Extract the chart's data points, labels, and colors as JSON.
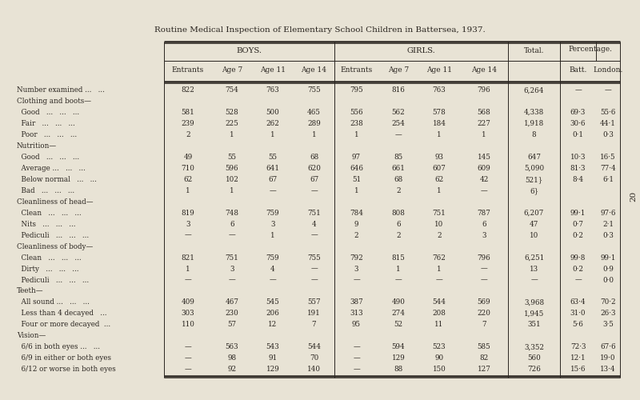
{
  "title": "Routine Medical Inspection of Elementary School Children in Battersea, 1937.",
  "bg_color": "#e8e3d5",
  "table_bg": "#f5f2eb",
  "text_color": "#2a2520",
  "rows": [
    {
      "label": "Number examined ...   ...",
      "section": false,
      "values": [
        "822",
        "754",
        "763",
        "755",
        "795",
        "816",
        "763",
        "796",
        "6,264",
        "—",
        "—"
      ]
    },
    {
      "label": "Clothing and boots—",
      "section": true,
      "values": [
        "",
        "",
        "",
        "",
        "",
        "",
        "",
        "",
        "",
        "",
        ""
      ]
    },
    {
      "label": "  Good   ...   ...   ...",
      "section": false,
      "values": [
        "581",
        "528",
        "500",
        "465",
        "556",
        "562",
        "578",
        "568",
        "4,338",
        "69·3",
        "55·6"
      ]
    },
    {
      "label": "  Fair   ...   ...   ...",
      "section": false,
      "values": [
        "239",
        "225",
        "262",
        "289",
        "238",
        "254",
        "184",
        "227",
        "1,918",
        "30·6",
        "44·1"
      ]
    },
    {
      "label": "  Poor   ...   ...   ...",
      "section": false,
      "values": [
        "2",
        "1",
        "1",
        "1",
        "1",
        "—",
        "1",
        "1",
        "8",
        "0·1",
        "0·3"
      ]
    },
    {
      "label": "Nutrition—",
      "section": true,
      "values": [
        "",
        "",
        "",
        "",
        "",
        "",
        "",
        "",
        "",
        "",
        ""
      ]
    },
    {
      "label": "  Good   ...   ...   ...",
      "section": false,
      "values": [
        "49",
        "55",
        "55",
        "68",
        "97",
        "85",
        "93",
        "145",
        "647",
        "10·3",
        "16·5"
      ]
    },
    {
      "label": "  Average ...   ...   ...",
      "section": false,
      "values": [
        "710",
        "596",
        "641",
        "620",
        "646",
        "661",
        "607",
        "609",
        "5,090",
        "81·3",
        "77·4"
      ]
    },
    {
      "label": "  Below normal   ...   ...",
      "section": false,
      "values": [
        "62",
        "102",
        "67",
        "67",
        "51",
        "68",
        "62",
        "42",
        "521}",
        "8·4",
        "6·1"
      ]
    },
    {
      "label": "  Bad   ...   ...   ...",
      "section": false,
      "values": [
        "1",
        "1",
        "—",
        "—",
        "1",
        "2",
        "1",
        "—",
        "6}",
        "",
        ""
      ]
    },
    {
      "label": "Cleanliness of head—",
      "section": true,
      "values": [
        "",
        "",
        "",
        "",
        "",
        "",
        "",
        "",
        "",
        "",
        ""
      ]
    },
    {
      "label": "  Clean   ...   ...   ...",
      "section": false,
      "values": [
        "819",
        "748",
        "759",
        "751",
        "784",
        "808",
        "751",
        "787",
        "6,207",
        "99·1",
        "97·6"
      ]
    },
    {
      "label": "  Nits   ...   ...   ...",
      "section": false,
      "values": [
        "3",
        "6",
        "3",
        "4",
        "9",
        "6",
        "10",
        "6",
        "47",
        "0·7",
        "2·1"
      ]
    },
    {
      "label": "  Pediculi   ...   ...   ...",
      "section": false,
      "values": [
        "—",
        "—",
        "1",
        "—",
        "2",
        "2",
        "2",
        "3",
        "10",
        "0·2",
        "0·3"
      ]
    },
    {
      "label": "Cleanliness of body—",
      "section": true,
      "values": [
        "",
        "",
        "",
        "",
        "",
        "",
        "",
        "",
        "",
        "",
        ""
      ]
    },
    {
      "label": "  Clean   ...   ...   ...",
      "section": false,
      "values": [
        "821",
        "751",
        "759",
        "755",
        "792",
        "815",
        "762",
        "796",
        "6,251",
        "99·8",
        "99·1"
      ]
    },
    {
      "label": "  Dirty   ...   ...   ...",
      "section": false,
      "values": [
        "1",
        "3",
        "4",
        "—",
        "3",
        "1",
        "1",
        "—",
        "13",
        "0·2",
        "0·9"
      ]
    },
    {
      "label": "  Pediculi   ...   ...   ...",
      "section": false,
      "values": [
        "—",
        "—",
        "—",
        "—",
        "—",
        "—",
        "—",
        "—",
        "—",
        "—",
        "0·0"
      ]
    },
    {
      "label": "Teeth—",
      "section": true,
      "values": [
        "",
        "",
        "",
        "",
        "",
        "",
        "",
        "",
        "",
        "",
        ""
      ]
    },
    {
      "label": "  All sound ...   ...   ...",
      "section": false,
      "values": [
        "409",
        "467",
        "545",
        "557",
        "387",
        "490",
        "544",
        "569",
        "3,968",
        "63·4",
        "70·2"
      ]
    },
    {
      "label": "  Less than 4 decayed   ...",
      "section": false,
      "values": [
        "303",
        "230",
        "206",
        "191",
        "313",
        "274",
        "208",
        "220",
        "1,945",
        "31·0",
        "26·3"
      ]
    },
    {
      "label": "  Four or more decayed  ...",
      "section": false,
      "values": [
        "110",
        "57",
        "12",
        "7",
        "95",
        "52",
        "11",
        "7",
        "351",
        "5·6",
        "3·5"
      ]
    },
    {
      "label": "Vision—",
      "section": true,
      "values": [
        "",
        "",
        "",
        "",
        "",
        "",
        "",
        "",
        "",
        "",
        ""
      ]
    },
    {
      "label": "  6/6 in both eyes ...   ...",
      "section": false,
      "values": [
        "—",
        "563",
        "543",
        "544",
        "—",
        "594",
        "523",
        "585",
        "3,352",
        "72·3",
        "67·6"
      ]
    },
    {
      "label": "  6/9 in either or both eyes",
      "section": false,
      "values": [
        "—",
        "98",
        "91",
        "70",
        "—",
        "129",
        "90",
        "82",
        "560",
        "12·1",
        "19·0"
      ]
    },
    {
      "label": "  6/12 or worse in both eyes",
      "section": false,
      "values": [
        "—",
        "92",
        "129",
        "140",
        "—",
        "88",
        "150",
        "127",
        "726",
        "15·6",
        "13·4"
      ]
    }
  ]
}
